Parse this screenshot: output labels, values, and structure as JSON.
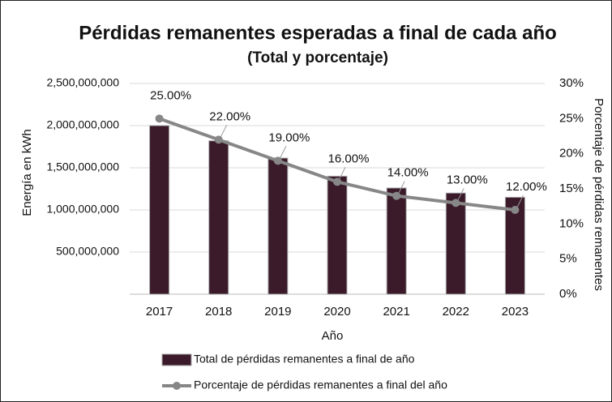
{
  "chart_data": {
    "type": "combo",
    "title": "Pérdidas remanentes esperadas a final de cada año",
    "subtitle": "(Total y porcentaje)",
    "x_label": "Año",
    "y_label": "Energía en kWh",
    "y2_label": "Porcentaje de pérdidas remanentes",
    "categories": [
      "2017",
      "2018",
      "2019",
      "2020",
      "2021",
      "2022",
      "2023"
    ],
    "series": [
      {
        "name": "Total de pérdidas remanentes a final de año",
        "type": "bar",
        "color": "#3b1a2a",
        "values": [
          2000000000,
          1820000000,
          1615000000,
          1400000000,
          1260000000,
          1200000000,
          1150000000
        ]
      },
      {
        "name": "Porcentaje de pérdidas remanentes a final del año",
        "type": "line",
        "axis": "y2",
        "color": "#878787",
        "values": [
          25,
          22,
          19,
          16,
          14,
          13,
          12
        ],
        "value_labels": [
          "25.00%",
          "22.00%",
          "19.00%",
          "16.00%",
          "14.00%",
          "13.00%",
          "12.00%"
        ]
      }
    ],
    "ylim": [
      0,
      2500000000
    ],
    "yticks": [
      {
        "value": 500000000,
        "label": "500,000,000"
      },
      {
        "value": 1000000000,
        "label": "1,000,000,000"
      },
      {
        "value": 1500000000,
        "label": "1,500,000,000"
      },
      {
        "value": 2000000000,
        "label": "2,000,000,000"
      },
      {
        "value": 2500000000,
        "label": "2,500,000,000"
      }
    ],
    "y2lim": [
      0,
      30
    ],
    "y2ticks": [
      {
        "value": 0,
        "label": "0%"
      },
      {
        "value": 5,
        "label": "5%"
      },
      {
        "value": 10,
        "label": "10%"
      },
      {
        "value": 15,
        "label": "15%"
      },
      {
        "value": 20,
        "label": "20%"
      },
      {
        "value": 25,
        "label": "25%"
      },
      {
        "value": 30,
        "label": "30%"
      }
    ],
    "grid": true,
    "legend": "bottom"
  }
}
